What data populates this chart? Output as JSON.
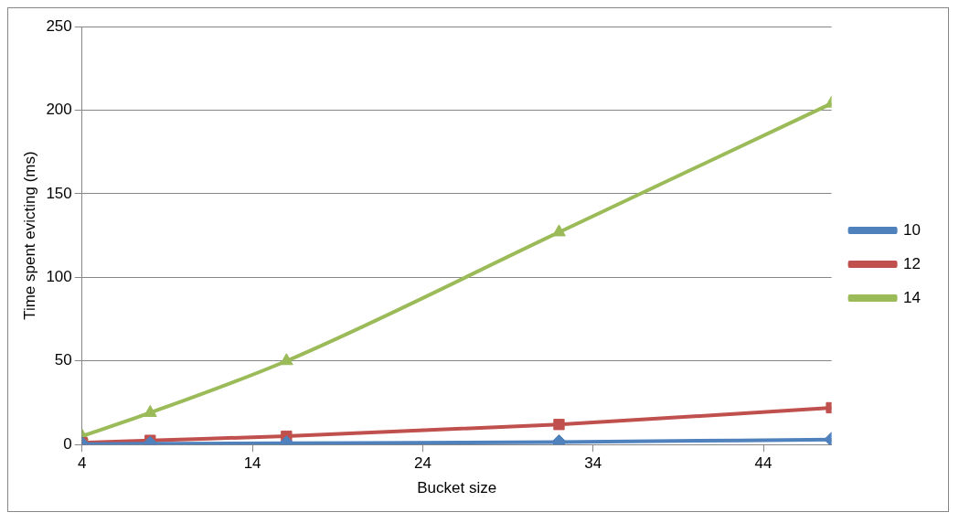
{
  "chart_data": {
    "type": "line",
    "xlabel": "Bucket size",
    "ylabel": "Time spent evicting (ms)",
    "x": [
      4,
      8,
      16,
      32,
      48
    ],
    "series": [
      {
        "name": "10",
        "color": "#4f81bd",
        "values": [
          0.3,
          0.5,
          0.8,
          1.5,
          3
        ],
        "marker": "diamond"
      },
      {
        "name": "12",
        "color": "#c0504d",
        "values": [
          1,
          2.5,
          5,
          12,
          22
        ],
        "marker": "square"
      },
      {
        "name": "14",
        "color": "#9bbb59",
        "values": [
          5,
          19,
          50,
          127,
          204
        ],
        "marker": "triangle"
      }
    ],
    "xlim": [
      4,
      48
    ],
    "xticks": [
      4,
      14,
      24,
      34,
      44
    ],
    "ylim": [
      0,
      250
    ],
    "yticks": [
      0,
      50,
      100,
      150,
      200,
      250
    ],
    "grid": "y",
    "legend": "right"
  }
}
